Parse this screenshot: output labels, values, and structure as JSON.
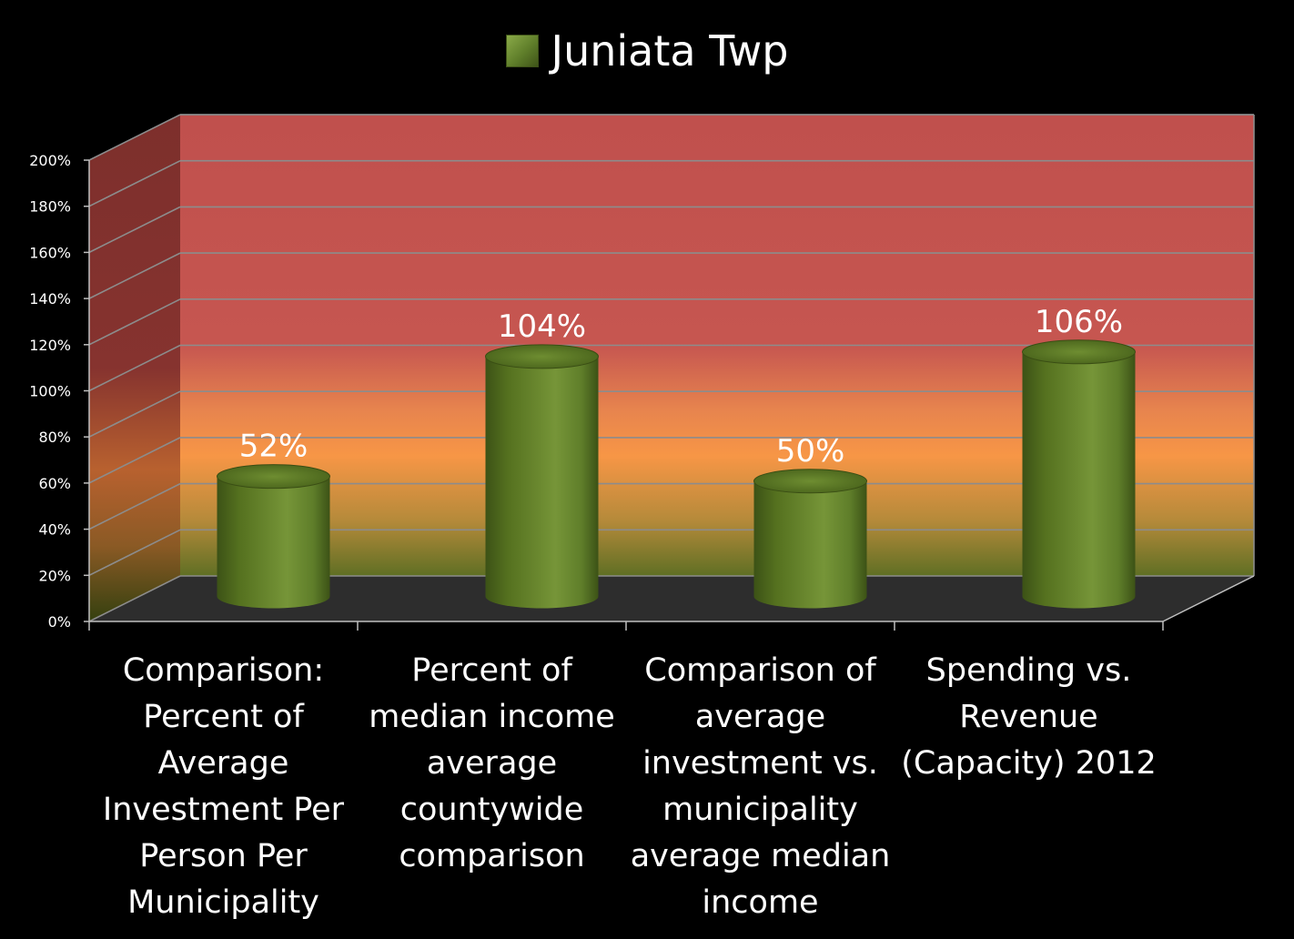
{
  "chart_data": {
    "type": "bar",
    "categories": [
      "Comparison: Percent of Average Investment Per Person Per Municipality",
      "Percent of median income average countywide comparison",
      "Comparison of average investment vs. municipality average median income",
      "Spending vs. Revenue (Capacity) 2012"
    ],
    "series": [
      {
        "name": "Juniata Twp",
        "values": [
          52,
          104,
          50,
          106
        ],
        "color": "#6b8a2f"
      }
    ],
    "data_labels": [
      "52%",
      "104%",
      "50%",
      "106%"
    ],
    "yticks": [
      "0%",
      "20%",
      "40%",
      "60%",
      "80%",
      "100%",
      "120%",
      "140%",
      "160%",
      "180%",
      "200%"
    ],
    "ylim": [
      0,
      200
    ],
    "y_unit": "%",
    "title": "",
    "xlabel": "",
    "ylabel": "",
    "legend_position": "top",
    "grid": true,
    "style": "3d-cylinder",
    "background": "black",
    "wall_gradient": [
      "#c0504d",
      "#f79646",
      "#6b7a2a"
    ],
    "floor_color": "#2d2d2d"
  }
}
